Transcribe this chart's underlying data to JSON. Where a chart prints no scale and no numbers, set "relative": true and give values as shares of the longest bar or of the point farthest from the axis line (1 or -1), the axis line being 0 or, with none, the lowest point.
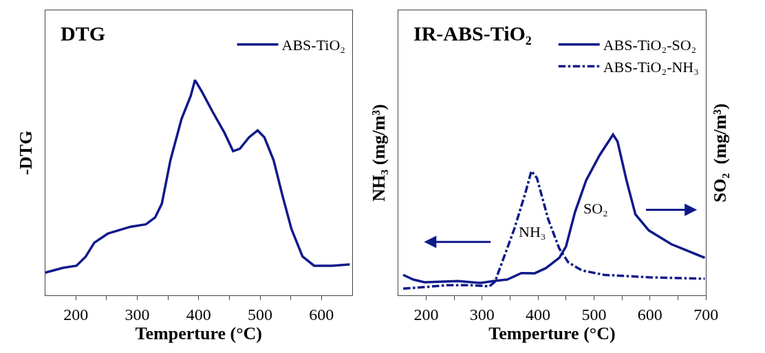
{
  "chart_data": [
    {
      "type": "line",
      "title": "DTG",
      "xlabel": "Temperture (°C)",
      "ylabel": "-DTG",
      "relative": true,
      "xlim": [
        150,
        650
      ],
      "xticks": [
        200,
        {
          "value": 250,
          "label": null
        },
        300,
        {
          "value": 350,
          "label": null
        },
        400,
        {
          "value": 450,
          "label": null
        },
        500,
        {
          "value": 550,
          "label": null
        },
        600
      ],
      "legend": "top right",
      "marker": "none",
      "series": [
        {
          "name": "ABS-TiO₂",
          "color": "#0f1a8a",
          "line_style": "solid",
          "x": [
            150,
            179,
            201,
            216,
            230,
            252,
            289,
            314,
            329,
            340,
            354,
            372,
            387,
            394,
            405,
            423,
            442,
            456,
            467,
            482,
            496,
            507,
            522,
            536,
            551,
            569,
            588,
            617,
            646
          ],
          "values": [
            0.106,
            0.128,
            0.138,
            0.18,
            0.245,
            0.287,
            0.319,
            0.33,
            0.362,
            0.426,
            0.628,
            0.819,
            0.926,
            1.0,
            0.947,
            0.851,
            0.755,
            0.67,
            0.681,
            0.734,
            0.766,
            0.734,
            0.628,
            0.468,
            0.309,
            0.181,
            0.138,
            0.138,
            0.144
          ]
        }
      ]
    },
    {
      "type": "line",
      "title": "IR-ABS-TiO₂",
      "xlabel": "Temperture (°C)",
      "ylabel": "NH₃ (mg/m³)",
      "y2label": "SO₂  (mg/m³)",
      "relative": true,
      "xlim": [
        150,
        700
      ],
      "xticks": [
        200,
        {
          "value": 250,
          "label": null
        },
        300,
        {
          "value": 350,
          "label": null
        },
        400,
        {
          "value": 450,
          "label": null
        },
        500,
        {
          "value": 550,
          "label": null
        },
        600,
        {
          "value": 650,
          "label": null
        },
        700
      ],
      "legend": "top right",
      "marker": "none",
      "annotations": [
        "NH₃",
        "SO₂"
      ],
      "series": [
        {
          "name": "ABS-TiO₂-SO₂",
          "color": "#0f1a8a",
          "line_style": "solid",
          "axis": "y2",
          "x": [
            159,
            177,
            197,
            257,
            297,
            325,
            345,
            370,
            394,
            414,
            438,
            450,
            466,
            486,
            510,
            534,
            542,
            558,
            574,
            598,
            638,
            698
          ],
          "values": [
            0.128,
            0.099,
            0.082,
            0.089,
            0.078,
            0.092,
            0.099,
            0.139,
            0.138,
            0.17,
            0.234,
            0.305,
            0.518,
            0.716,
            0.872,
            1.0,
            0.957,
            0.716,
            0.504,
            0.404,
            0.319,
            0.234
          ]
        },
        {
          "name": "ABS-TiO₂-NH₃",
          "color": "#0f1a8a",
          "line_style": "dashdot",
          "x": [
            159,
            197,
            237,
            277,
            313,
            323,
            358,
            378,
            388,
            398,
            418,
            438,
            454,
            478,
            518,
            598,
            698
          ],
          "values": [
            0.043,
            0.052,
            0.064,
            0.064,
            0.057,
            0.085,
            0.418,
            0.645,
            0.773,
            0.73,
            0.475,
            0.291,
            0.206,
            0.156,
            0.128,
            0.113,
            0.104
          ]
        }
      ]
    }
  ]
}
